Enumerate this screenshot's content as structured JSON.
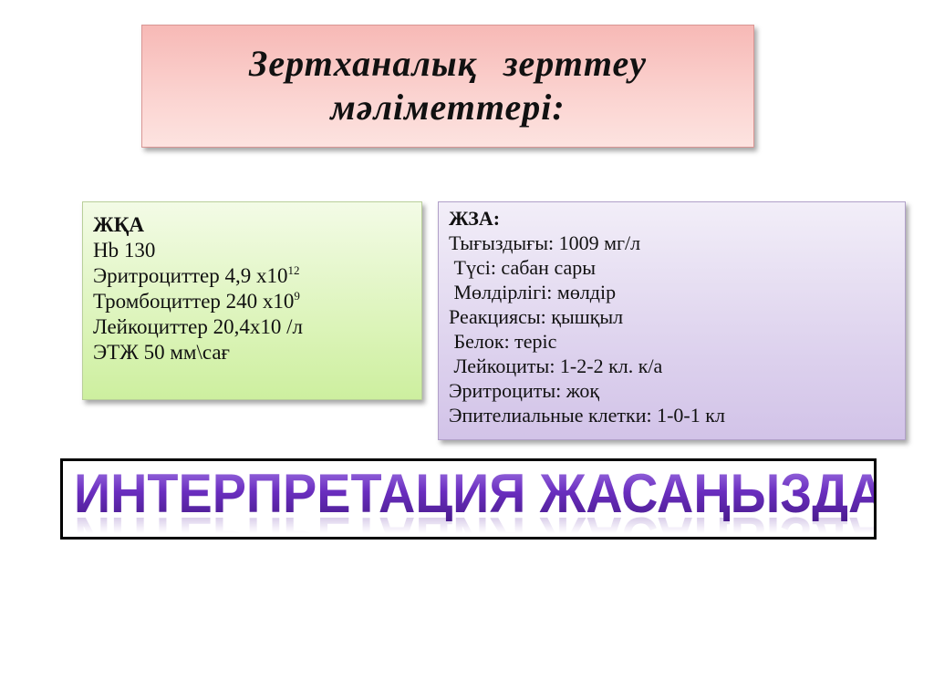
{
  "title": {
    "line1": "Зертханалық зерттеу",
    "line2": "мәліметтері:"
  },
  "blood_test": {
    "heading": "ЖҚА",
    "hb": "Hb 130",
    "erythrocytes": "Эритроциттер  4,9 х10",
    "erythrocytes_exp": "12",
    "platelets": "Тромбоциттер 240 х10",
    "platelets_exp": "9",
    "leukocytes": "Лейкоциттер 20,4х10 /л",
    "esr": "ЭТЖ 50 мм\\сағ"
  },
  "urine_test": {
    "heading": "ЖЗА:",
    "lines": [
      "Тығыздығы: 1009 мг/л",
      " Түсі: сабан сары",
      " Мөлдірлігі: мөлдір",
      "Реакциясы: қышқыл",
      " Белок: теріс",
      " Лейкоциты: 1-2-2 кл. к/а",
      "Эритроциты: жоқ",
      "Эпителиальные клетки: 1-0-1 кл"
    ]
  },
  "banner": {
    "text": "ИНТЕРПРЕТАЦИЯ ЖАСАҢЫЗДАР"
  },
  "colors": {
    "title_bg": "#f9c6c3",
    "green_bg": "#d9f3b4",
    "purple_bg": "#ded3ee",
    "banner_text": "#6a2fb8"
  }
}
